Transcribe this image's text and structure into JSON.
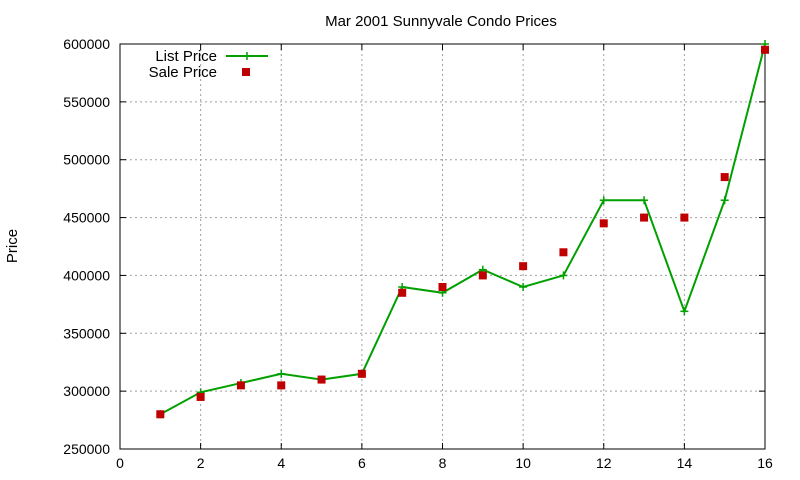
{
  "chart_data": {
    "type": "line",
    "title": "Mar 2001 Sunnyvale Condo Prices",
    "xlabel": "",
    "ylabel": "Price",
    "xlim": [
      0,
      16
    ],
    "ylim": [
      250000,
      600000
    ],
    "xticks": [
      0,
      2,
      4,
      6,
      8,
      10,
      12,
      14,
      16
    ],
    "yticks": [
      250000,
      300000,
      350000,
      400000,
      450000,
      500000,
      550000,
      600000
    ],
    "grid": true,
    "legend_position": "top-left",
    "series": [
      {
        "name": "List Price",
        "style": "line-with-plus",
        "color": "#00a000",
        "x": [
          1,
          2,
          3,
          4,
          5,
          6,
          7,
          8,
          9,
          10,
          11,
          12,
          13,
          14,
          15,
          16
        ],
        "y": [
          280000,
          299000,
          307000,
          315000,
          310000,
          315000,
          390000,
          385000,
          405000,
          390000,
          400000,
          465000,
          465000,
          369000,
          465000,
          600000
        ]
      },
      {
        "name": "Sale Price",
        "style": "square-points",
        "color": "#c00000",
        "x": [
          1,
          2,
          3,
          4,
          5,
          6,
          7,
          8,
          9,
          10,
          11,
          12,
          13,
          14,
          15,
          16
        ],
        "y": [
          280000,
          295000,
          305000,
          305000,
          310000,
          315000,
          385000,
          390000,
          400000,
          408000,
          420000,
          445000,
          450000,
          450000,
          485000,
          595000
        ]
      }
    ]
  }
}
